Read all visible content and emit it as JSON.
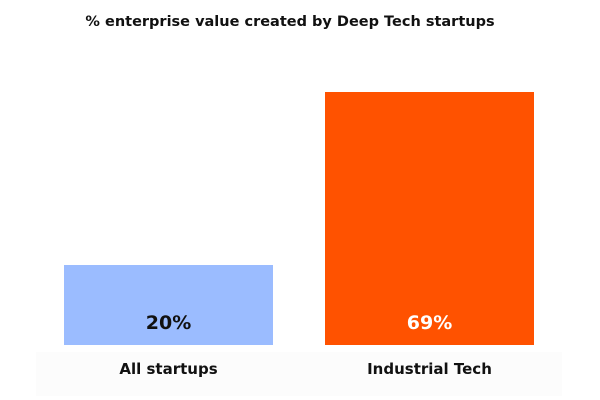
{
  "chart_data": {
    "type": "bar",
    "title": "% enterprise value created by Deep Tech startups",
    "categories": [
      "All startups",
      "Industrial Tech"
    ],
    "values": [
      20,
      69
    ],
    "data_labels": [
      "20%",
      "69%"
    ],
    "colors": [
      "#9bbcff",
      "#ff5200"
    ],
    "label_colors": [
      "#111111",
      "#ffffff"
    ],
    "xlabel": "",
    "ylabel": "",
    "ylim": [
      0,
      69
    ],
    "grid": false,
    "legend": "none"
  }
}
